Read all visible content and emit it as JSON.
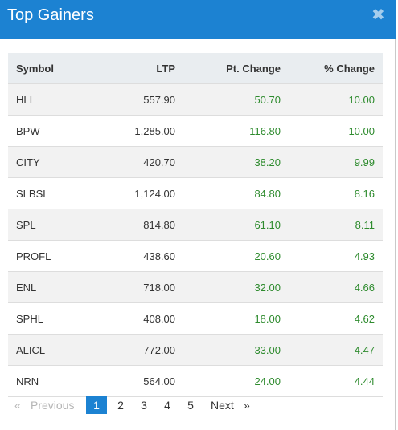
{
  "modal": {
    "title": "Top Gainers",
    "close_glyph": "✖"
  },
  "table": {
    "headers": {
      "symbol": "Symbol",
      "ltp": "LTP",
      "pt_change": "Pt. Change",
      "pct_change": "% Change"
    },
    "rows": [
      {
        "symbol": "HLI",
        "ltp": "557.90",
        "pt_change": "50.70",
        "pct_change": "10.00"
      },
      {
        "symbol": "BPW",
        "ltp": "1,285.00",
        "pt_change": "116.80",
        "pct_change": "10.00"
      },
      {
        "symbol": "CITY",
        "ltp": "420.70",
        "pt_change": "38.20",
        "pct_change": "9.99"
      },
      {
        "symbol": "SLBSL",
        "ltp": "1,124.00",
        "pt_change": "84.80",
        "pct_change": "8.16"
      },
      {
        "symbol": "SPL",
        "ltp": "814.80",
        "pt_change": "61.10",
        "pct_change": "8.11"
      },
      {
        "symbol": "PROFL",
        "ltp": "438.60",
        "pt_change": "20.60",
        "pct_change": "4.93"
      },
      {
        "symbol": "ENL",
        "ltp": "718.00",
        "pt_change": "32.00",
        "pct_change": "4.66"
      },
      {
        "symbol": "SPHL",
        "ltp": "408.00",
        "pt_change": "18.00",
        "pct_change": "4.62"
      },
      {
        "symbol": "ALICL",
        "ltp": "772.00",
        "pt_change": "33.00",
        "pct_change": "4.47"
      },
      {
        "symbol": "NRN",
        "ltp": "564.00",
        "pt_change": "24.00",
        "pct_change": "4.44"
      }
    ]
  },
  "pagination": {
    "prev_arrow": "«",
    "previous": "Previous",
    "pages": [
      "1",
      "2",
      "3",
      "4",
      "5"
    ],
    "active_page": "1",
    "next": "Next",
    "next_arrow": "»"
  },
  "colors": {
    "header_bg": "#1c82d2",
    "positive": "#2e8b2e",
    "active_page_bg": "#1c82d2"
  }
}
